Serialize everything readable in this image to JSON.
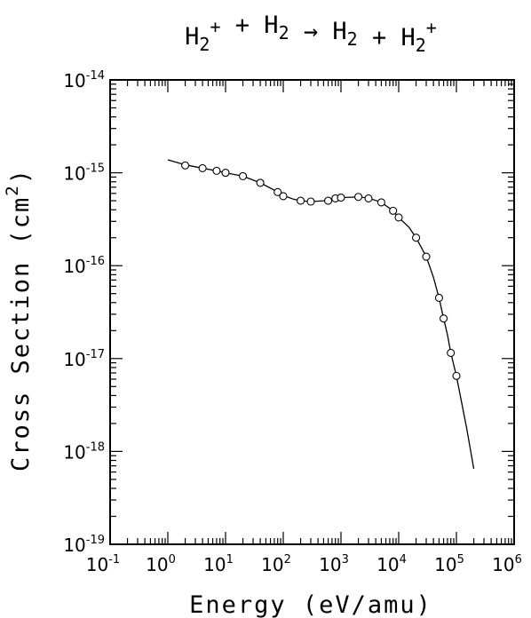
{
  "chart_data": {
    "type": "scatter",
    "title": {
      "parts": [
        {
          "text": "H",
          "sub": "2",
          "sup": "+"
        },
        {
          "text": " + "
        },
        {
          "text": "H",
          "sub": "2"
        },
        {
          "text": " → "
        },
        {
          "text": "H",
          "sub": "2"
        },
        {
          "text": " + "
        },
        {
          "text": "H",
          "sub": "2",
          "sup": "+"
        }
      ]
    },
    "xlabel": "Energy (eV/amu)",
    "ylabel": {
      "text": "Cross Section (cm",
      "sup": "2",
      "end": ")"
    },
    "x_scale": "log",
    "y_scale": "log",
    "xlim": [
      0.1,
      1000000
    ],
    "ylim": [
      1e-19,
      1e-14
    ],
    "x_ticks": [
      {
        "value": 0.1,
        "base": "10",
        "exp": "-1"
      },
      {
        "value": 1,
        "base": "10",
        "exp": "0"
      },
      {
        "value": 10,
        "base": "10",
        "exp": "1"
      },
      {
        "value": 100,
        "base": "10",
        "exp": "2"
      },
      {
        "value": 1000,
        "base": "10",
        "exp": "3"
      },
      {
        "value": 10000,
        "base": "10",
        "exp": "4"
      },
      {
        "value": 100000,
        "base": "10",
        "exp": "5"
      },
      {
        "value": 1000000,
        "base": "10",
        "exp": "6"
      }
    ],
    "y_ticks": [
      {
        "value": 1e-19,
        "base": "10",
        "exp": "-19"
      },
      {
        "value": 1e-18,
        "base": "10",
        "exp": "-18"
      },
      {
        "value": 1e-17,
        "base": "10",
        "exp": "-17"
      },
      {
        "value": 1e-16,
        "base": "10",
        "exp": "-16"
      },
      {
        "value": 1e-15,
        "base": "10",
        "exp": "-15"
      },
      {
        "value": 1e-14,
        "base": "10",
        "exp": "-14"
      }
    ],
    "grid": false,
    "series": [
      {
        "kind": "points",
        "marker": "open-circle",
        "points": [
          [
            2,
            1.2e-15
          ],
          [
            4,
            1.12e-15
          ],
          [
            7,
            1.05e-15
          ],
          [
            10,
            1e-15
          ],
          [
            20,
            9.2e-16
          ],
          [
            40,
            7.8e-16
          ],
          [
            80,
            6.2e-16
          ],
          [
            100,
            5.6e-16
          ],
          [
            200,
            5e-16
          ],
          [
            300,
            4.9e-16
          ],
          [
            600,
            5e-16
          ],
          [
            800,
            5.3e-16
          ],
          [
            1000,
            5.4e-16
          ],
          [
            2000,
            5.5e-16
          ],
          [
            3000,
            5.3e-16
          ],
          [
            5000,
            4.8e-16
          ],
          [
            8000,
            3.9e-16
          ],
          [
            10000,
            3.3e-16
          ],
          [
            20000,
            2e-16
          ],
          [
            30000,
            1.25e-16
          ],
          [
            50000,
            4.5e-17
          ],
          [
            60000,
            2.7e-17
          ],
          [
            80000,
            1.15e-17
          ],
          [
            100000,
            6.5e-18
          ]
        ]
      },
      {
        "kind": "fit-line",
        "points": [
          [
            1,
            1.38e-15
          ],
          [
            2,
            1.22e-15
          ],
          [
            4,
            1.12e-15
          ],
          [
            7,
            1.05e-15
          ],
          [
            10,
            1e-15
          ],
          [
            20,
            9.2e-16
          ],
          [
            40,
            7.8e-16
          ],
          [
            70,
            6.5e-16
          ],
          [
            100,
            5.7e-16
          ],
          [
            150,
            5.2e-16
          ],
          [
            200,
            5e-16
          ],
          [
            300,
            4.9e-16
          ],
          [
            500,
            5e-16
          ],
          [
            800,
            5.3e-16
          ],
          [
            1000,
            5.4e-16
          ],
          [
            2000,
            5.5e-16
          ],
          [
            3000,
            5.35e-16
          ],
          [
            5000,
            4.8e-16
          ],
          [
            8000,
            3.9e-16
          ],
          [
            10000,
            3.3e-16
          ],
          [
            15000,
            2.6e-16
          ],
          [
            20000,
            2e-16
          ],
          [
            30000,
            1.25e-16
          ],
          [
            40000,
            7.5e-17
          ],
          [
            50000,
            4.5e-17
          ],
          [
            60000,
            2.7e-17
          ],
          [
            70000,
            1.8e-17
          ],
          [
            80000,
            1.15e-17
          ],
          [
            100000,
            6.5e-18
          ],
          [
            150000,
            1.8e-18
          ],
          [
            200000,
            6.5e-19
          ]
        ]
      }
    ]
  }
}
